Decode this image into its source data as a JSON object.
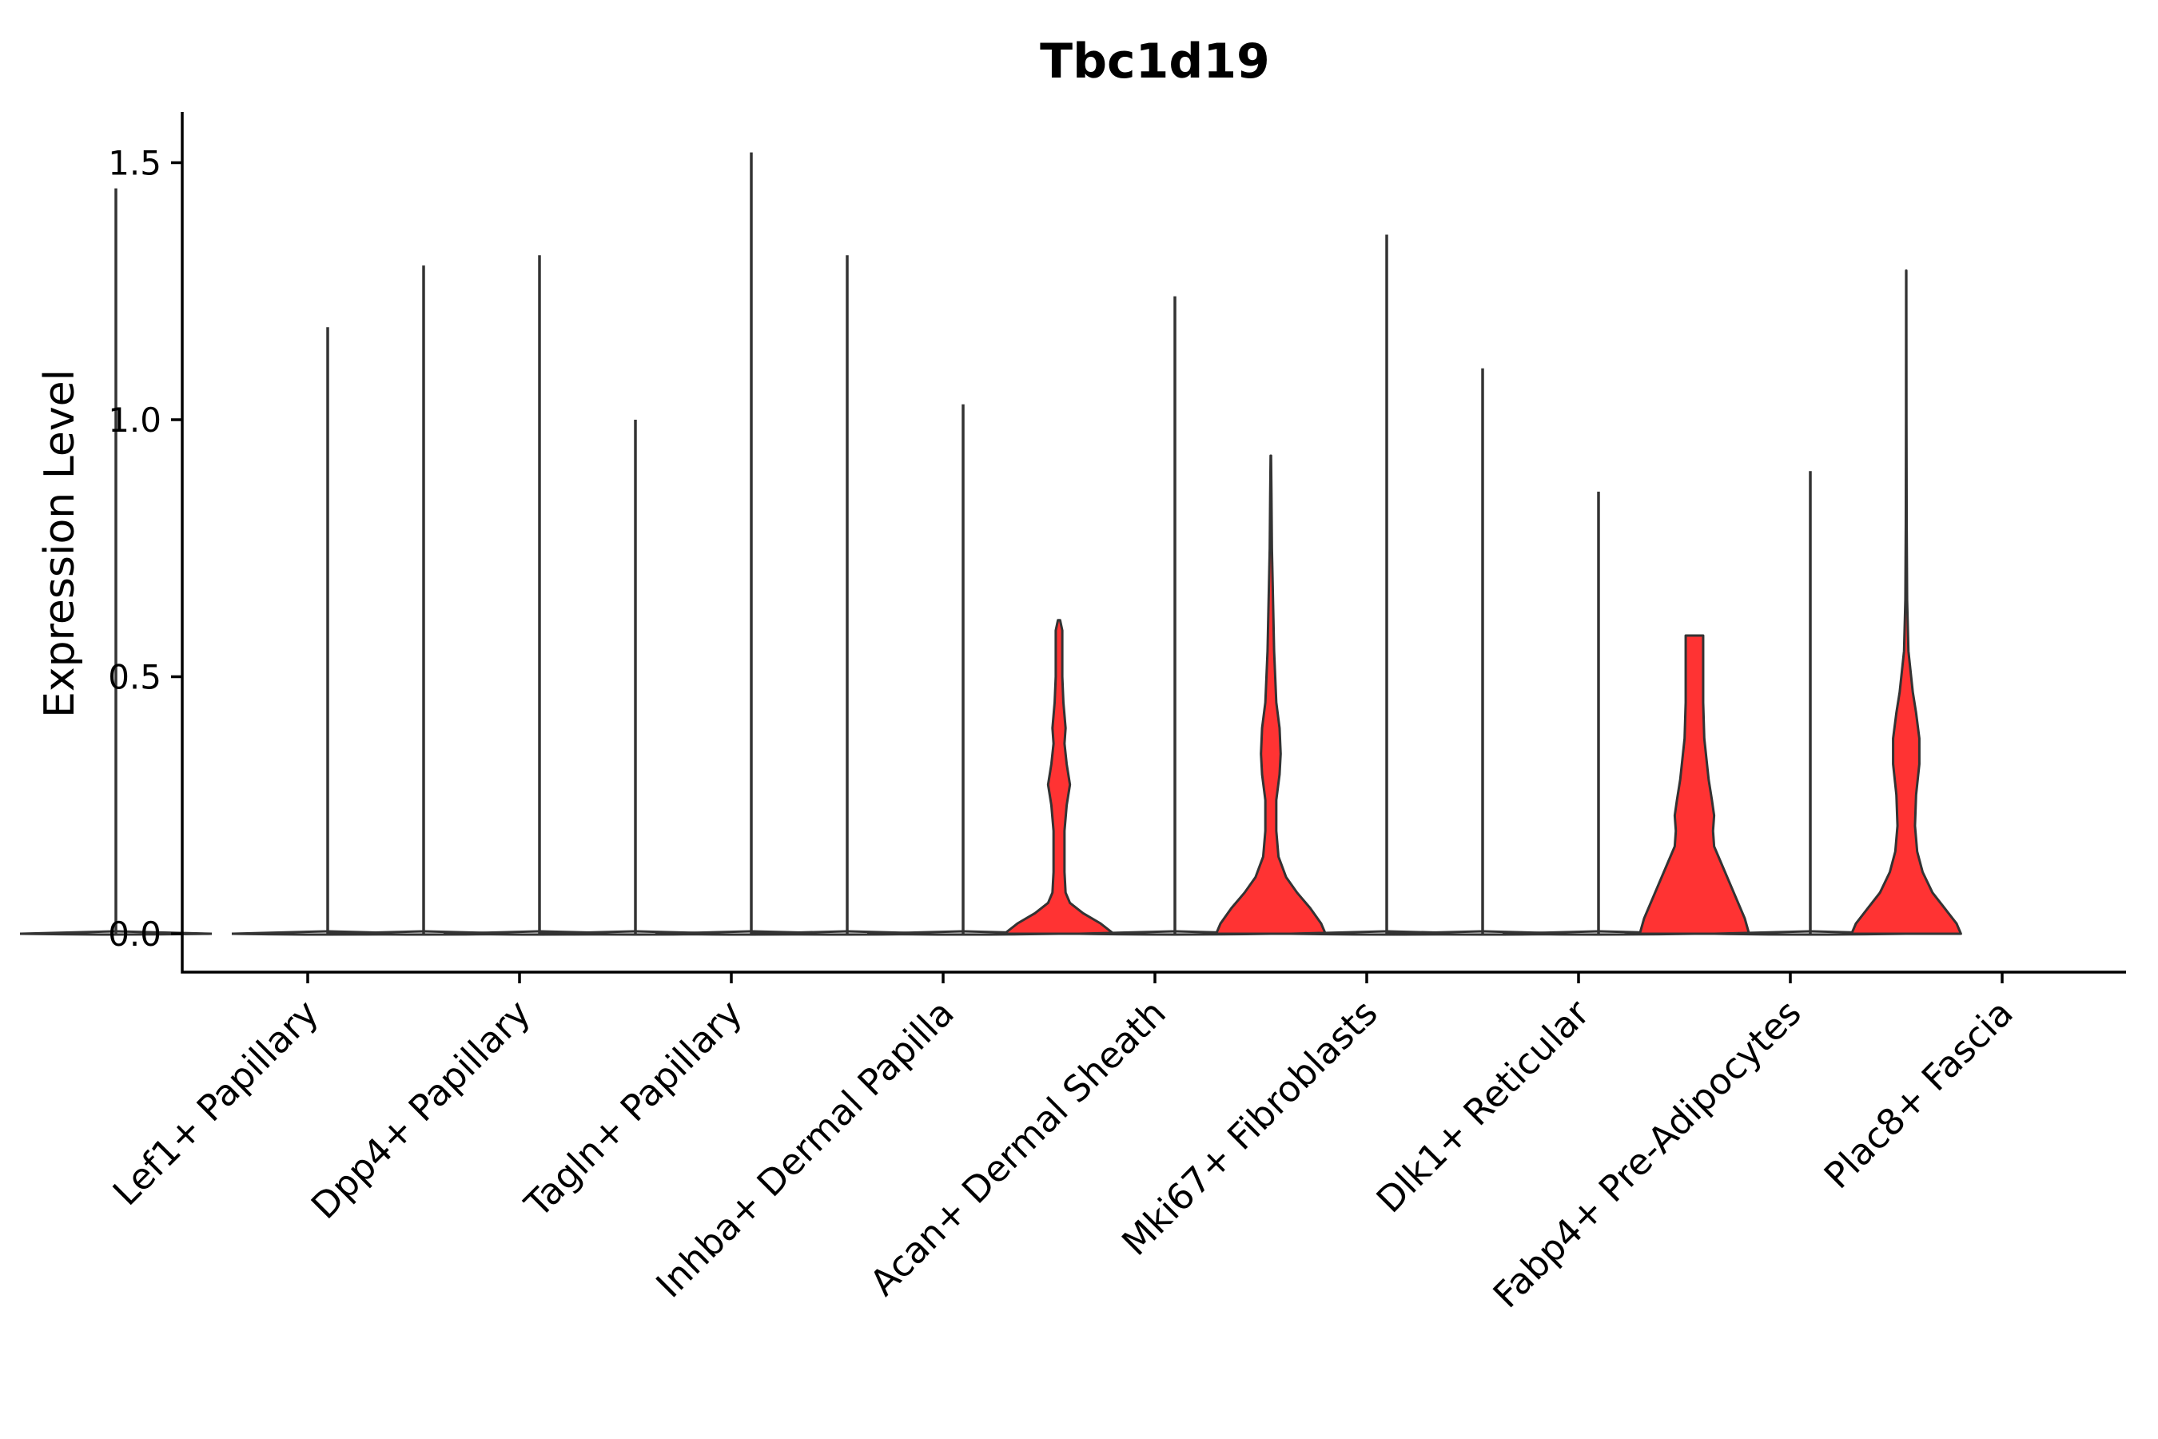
{
  "chart_data": {
    "type": "violin",
    "title": "Tbc1d19",
    "xlabel": "",
    "ylabel": "Expression Level",
    "ylim": [
      -0.08,
      1.6
    ],
    "yticks": [
      {
        "value": 0.0,
        "label": "0.0"
      },
      {
        "value": 0.5,
        "label": "0.5"
      },
      {
        "value": 1.0,
        "label": "1.0"
      },
      {
        "value": 1.5,
        "label": "1.5"
      }
    ],
    "grid": false,
    "legend": "none",
    "fill_color": "#ff3333",
    "outline_color": "#333333",
    "categories": [
      "Lef1+ Papillary",
      "Dpp4+ Papillary",
      "Tagln+ Papillary",
      "Inhba+ Dermal Papilla",
      "Acan+ Dermal Sheath",
      "Mki67+ Fibroblasts",
      "Dlk1+ Reticular",
      "Fabp4+ Pre-Adipocytes",
      "Plac8+ Fascia"
    ],
    "series": [
      {
        "values": [
          {
            "max": 1.45
          },
          {
            "max": 1.18
          },
          {
            "max": 1.32
          },
          {
            "max": 1.52
          },
          {
            "max": 1.03
          },
          {
            "max": 1.24
          },
          {
            "max": 1.36
          },
          {
            "max": 0.86
          },
          {
            "max": 0.9
          }
        ]
      },
      {
        "values": [
          null,
          {
            "max": 1.3
          },
          {
            "max": 1.0
          },
          {
            "max": 1.32
          },
          {
            "max": 0.61,
            "profile": [
              [
                0.0,
                0.5
              ],
              [
                0.02,
                0.38
              ],
              [
                0.04,
                0.22
              ],
              [
                0.06,
                0.1
              ],
              [
                0.08,
                0.06
              ],
              [
                0.12,
                0.05
              ],
              [
                0.2,
                0.05
              ],
              [
                0.25,
                0.07
              ],
              [
                0.29,
                0.1
              ],
              [
                0.33,
                0.07
              ],
              [
                0.37,
                0.05
              ],
              [
                0.4,
                0.06
              ],
              [
                0.45,
                0.04
              ],
              [
                0.5,
                0.03
              ],
              [
                0.55,
                0.03
              ],
              [
                0.59,
                0.03
              ],
              [
                0.61,
                0.01
              ]
            ]
          },
          {
            "max": 0.93,
            "profile": [
              [
                0.0,
                0.5
              ],
              [
                0.02,
                0.46
              ],
              [
                0.05,
                0.36
              ],
              [
                0.08,
                0.24
              ],
              [
                0.11,
                0.14
              ],
              [
                0.15,
                0.07
              ],
              [
                0.2,
                0.05
              ],
              [
                0.26,
                0.05
              ],
              [
                0.31,
                0.08
              ],
              [
                0.35,
                0.09
              ],
              [
                0.4,
                0.08
              ],
              [
                0.45,
                0.05
              ],
              [
                0.55,
                0.03
              ],
              [
                0.65,
                0.02
              ],
              [
                0.75,
                0.01
              ],
              [
                0.85,
                0.006
              ],
              [
                0.93,
                0.002
              ]
            ]
          },
          {
            "max": 1.1
          },
          {
            "max": 0.58,
            "profile": [
              [
                0.0,
                0.5
              ],
              [
                0.03,
                0.46
              ],
              [
                0.06,
                0.4
              ],
              [
                0.1,
                0.32
              ],
              [
                0.14,
                0.24
              ],
              [
                0.17,
                0.18
              ],
              [
                0.2,
                0.17
              ],
              [
                0.23,
                0.18
              ],
              [
                0.26,
                0.16
              ],
              [
                0.3,
                0.13
              ],
              [
                0.34,
                0.11
              ],
              [
                0.38,
                0.09
              ],
              [
                0.45,
                0.08
              ],
              [
                0.52,
                0.08
              ],
              [
                0.58,
                0.08
              ]
            ]
          },
          {
            "max": 1.29,
            "profile": [
              [
                0.0,
                0.5
              ],
              [
                0.02,
                0.46
              ],
              [
                0.05,
                0.35
              ],
              [
                0.08,
                0.24
              ],
              [
                0.12,
                0.15
              ],
              [
                0.16,
                0.1
              ],
              [
                0.21,
                0.08
              ],
              [
                0.27,
                0.09
              ],
              [
                0.33,
                0.12
              ],
              [
                0.38,
                0.12
              ],
              [
                0.43,
                0.09
              ],
              [
                0.47,
                0.06
              ],
              [
                0.55,
                0.02
              ],
              [
                0.65,
                0.008
              ],
              [
                0.8,
                0.004
              ],
              [
                1.0,
                0.002
              ],
              [
                1.29,
                0.001
              ]
            ]
          }
        ]
      }
    ]
  }
}
